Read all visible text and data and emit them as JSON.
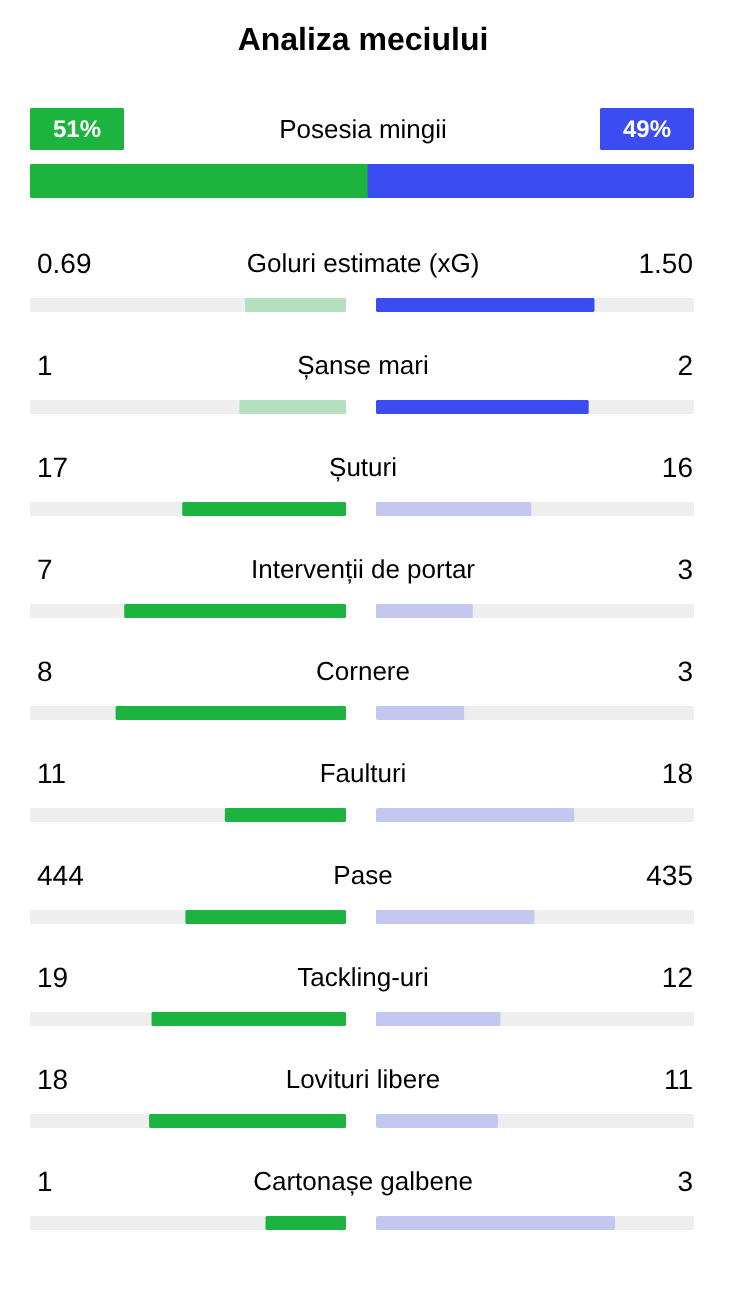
{
  "chart_data": {
    "type": "other",
    "title": "Analiza meciului",
    "categories": [
      "Posesia mingii",
      "Goluri estimate (xG)",
      "Șanse mari",
      "Șuturi",
      "Intervenții de portar",
      "Cornere",
      "Faulturi",
      "Pase",
      "Tackling-uri",
      "Lovituri libere",
      "Cartonașe galbene"
    ],
    "series": [
      {
        "values": [
          51,
          0.69,
          1,
          17,
          7,
          8,
          11,
          444,
          19,
          18,
          1
        ],
        "value_labels": [
          "51%",
          "0.69",
          "1",
          "17",
          "7",
          "8",
          "11",
          "444",
          "19",
          "18",
          "1"
        ],
        "colors": [
          "#1db33f",
          "#b5e0c0",
          "#b5e0c0",
          "#1db33f",
          "#1db33f",
          "#1db33f",
          "#1db33f",
          "#1db33f",
          "#1db33f",
          "#1db33f",
          "#1db33f"
        ]
      },
      {
        "values": [
          49,
          1.5,
          2,
          16,
          3,
          3,
          18,
          435,
          12,
          11,
          3
        ],
        "value_labels": [
          "49%",
          "1.50",
          "2",
          "16",
          "3",
          "3",
          "18",
          "435",
          "12",
          "11",
          "3"
        ],
        "colors": [
          "#3b4cf2",
          "#3b4cf2",
          "#3b4cf2",
          "#c4c8f0",
          "#c4c8f0",
          "#c4c8f0",
          "#c4c8f0",
          "#c4c8f0",
          "#c4c8f0",
          "#c4c8f0",
          "#c4c8f0"
        ]
      }
    ]
  }
}
